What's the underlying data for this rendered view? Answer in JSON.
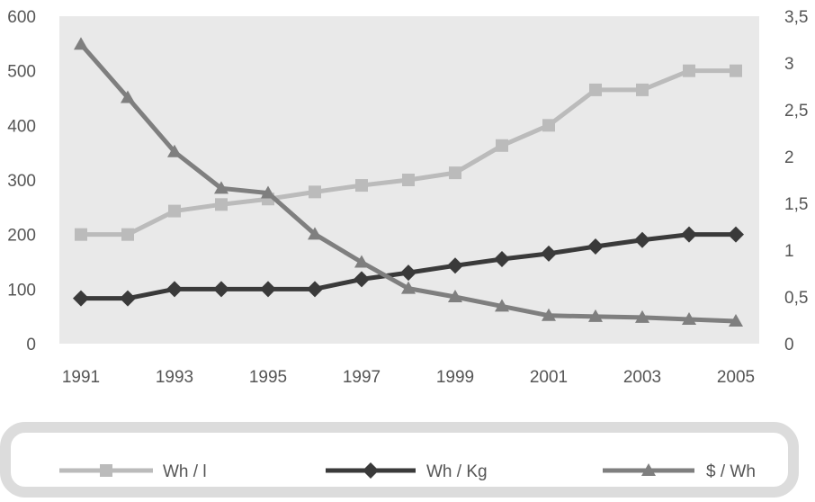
{
  "chart_data": {
    "type": "line",
    "title": "",
    "x": [
      1991,
      1992,
      1993,
      1994,
      1995,
      1996,
      1997,
      1998,
      1999,
      2000,
      2001,
      2002,
      2003,
      2004,
      2005
    ],
    "x_tick_labels": [
      "1991",
      "1993",
      "1995",
      "1997",
      "1999",
      "2001",
      "2003",
      "2005"
    ],
    "y_left": {
      "ylim": [
        0,
        600
      ],
      "ticks": [
        "0",
        "100",
        "200",
        "300",
        "400",
        "500",
        "600"
      ]
    },
    "y_right": {
      "ylim": [
        0,
        3.5
      ],
      "ticks": [
        "0",
        "0,5",
        "1",
        "1,5",
        "2",
        "2,5",
        "3",
        "3,5"
      ]
    },
    "series": [
      {
        "name": "Wh / l",
        "axis": "left",
        "marker": "square",
        "color": "#bbbbbb",
        "values": [
          200,
          200,
          243,
          255,
          265,
          278,
          290,
          300,
          313,
          363,
          400,
          465,
          465,
          500,
          500
        ]
      },
      {
        "name": "Wh / Kg",
        "axis": "left",
        "marker": "diamond",
        "color": "#3a3a3a",
        "values": [
          83,
          83,
          100,
          100,
          100,
          100,
          118,
          130,
          143,
          155,
          165,
          178,
          190,
          200,
          200
        ]
      },
      {
        "name": "$ / Wh",
        "axis": "right",
        "marker": "triangle",
        "color": "#7f7f7f",
        "values": [
          3.2,
          2.63,
          2.05,
          1.66,
          1.61,
          1.17,
          0.87,
          0.59,
          0.5,
          0.4,
          0.3,
          0.29,
          0.28,
          0.26,
          0.24
        ]
      }
    ],
    "grid": false,
    "legend": "bottom"
  }
}
